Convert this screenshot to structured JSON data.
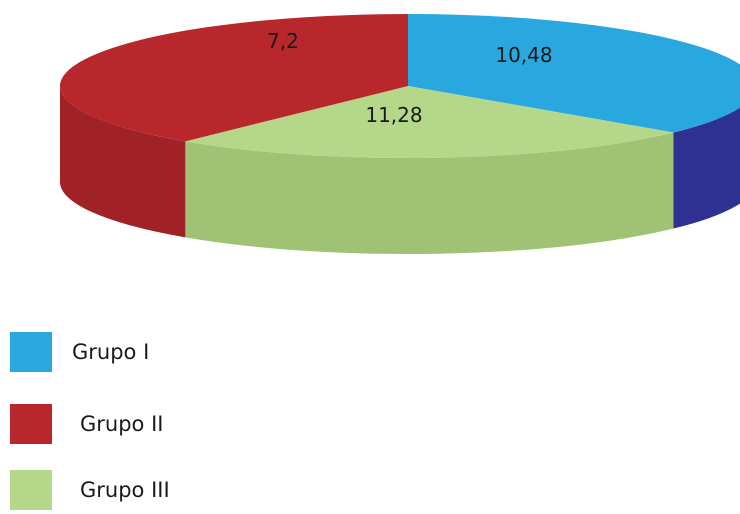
{
  "chart_data": {
    "type": "pie",
    "style": "3d",
    "title": "",
    "series": [
      {
        "name": "Grupo I",
        "value": 10.48,
        "label": "10,48",
        "color": "#29a8e0",
        "side_color": "#2e3192"
      },
      {
        "name": "Grupo II",
        "value": 11.28,
        "label": "11,28",
        "color": "#b8272c",
        "side_color": "#a02226"
      },
      {
        "name": "Grupo III",
        "value": 7.2,
        "label": "7,2",
        "color": "#b5d78a",
        "side_color": "#9fc274"
      }
    ],
    "legend": {
      "placement": "bottom-left",
      "items": [
        {
          "label": "Grupo I",
          "color": "#29a8e0"
        },
        {
          "label": "Grupo II",
          "color": "#b8272c"
        },
        {
          "label": "Grupo III",
          "color": "#b5d78a"
        }
      ]
    }
  }
}
